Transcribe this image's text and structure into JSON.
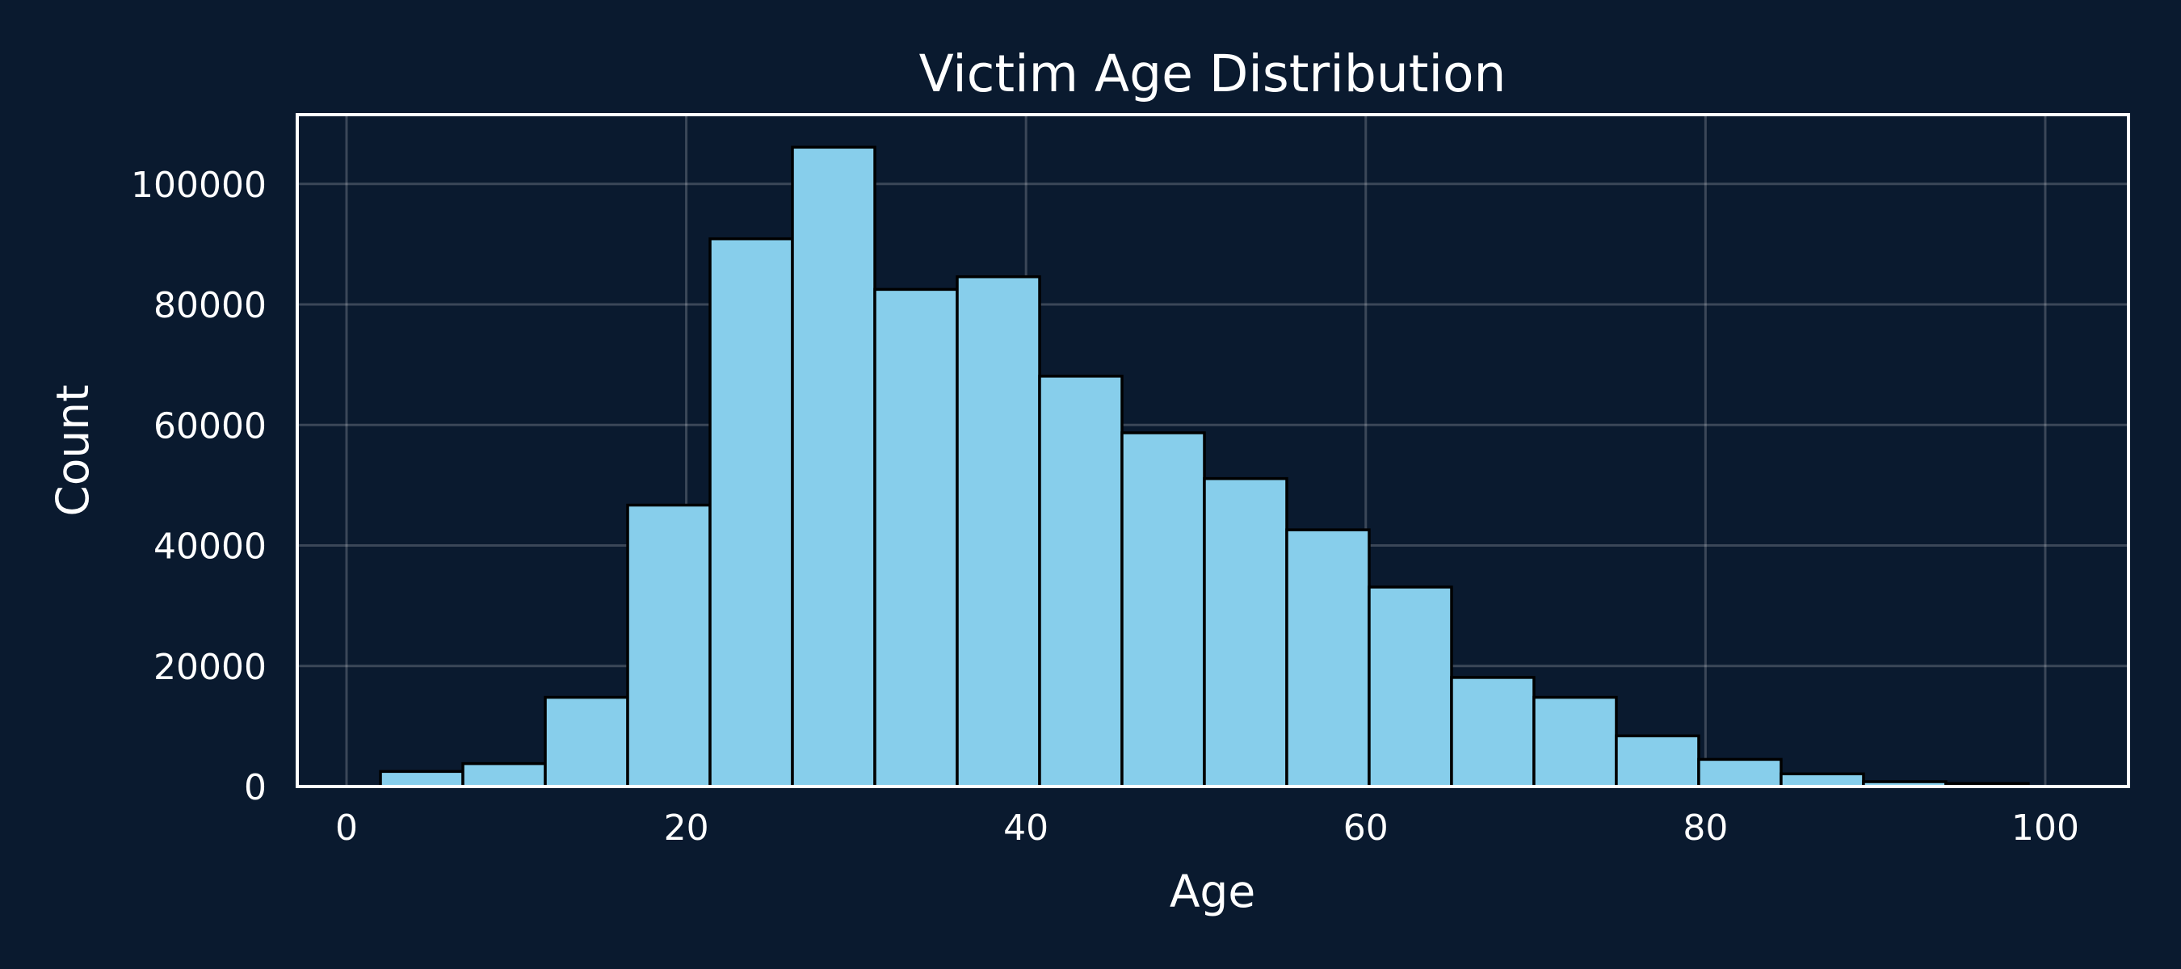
{
  "chart_data": {
    "type": "bar",
    "title": "Victim Age Distribution",
    "xlabel": "Age",
    "ylabel": "Count",
    "xlim": [
      -2.9,
      104.9
    ],
    "ylim": [
      0,
      111500
    ],
    "x_ticks": [
      0,
      20,
      40,
      60,
      80,
      100
    ],
    "y_ticks": [
      0,
      20000,
      40000,
      60000,
      80000,
      100000
    ],
    "grid": true,
    "bar_color": "#87ceeb",
    "edge_color": "#000000",
    "background_color": "#0a1a2f",
    "bins": [
      {
        "start": 2.0,
        "end": 6.85,
        "count": 2500
      },
      {
        "start": 6.85,
        "end": 11.7,
        "count": 3800
      },
      {
        "start": 11.7,
        "end": 16.55,
        "count": 14800
      },
      {
        "start": 16.55,
        "end": 21.4,
        "count": 46700
      },
      {
        "start": 21.4,
        "end": 26.25,
        "count": 90900
      },
      {
        "start": 26.25,
        "end": 31.1,
        "count": 106100
      },
      {
        "start": 31.1,
        "end": 35.95,
        "count": 82500
      },
      {
        "start": 35.95,
        "end": 40.8,
        "count": 84600
      },
      {
        "start": 40.8,
        "end": 45.65,
        "count": 68100
      },
      {
        "start": 45.65,
        "end": 50.5,
        "count": 58700
      },
      {
        "start": 50.5,
        "end": 55.35,
        "count": 51100
      },
      {
        "start": 55.35,
        "end": 60.2,
        "count": 42600
      },
      {
        "start": 60.2,
        "end": 65.05,
        "count": 33100
      },
      {
        "start": 65.05,
        "end": 69.9,
        "count": 18100
      },
      {
        "start": 69.9,
        "end": 74.75,
        "count": 14800
      },
      {
        "start": 74.75,
        "end": 79.6,
        "count": 8400
      },
      {
        "start": 79.6,
        "end": 84.45,
        "count": 4500
      },
      {
        "start": 84.45,
        "end": 89.3,
        "count": 2100
      },
      {
        "start": 89.3,
        "end": 94.15,
        "count": 800
      },
      {
        "start": 94.15,
        "end": 99.0,
        "count": 500
      }
    ]
  }
}
